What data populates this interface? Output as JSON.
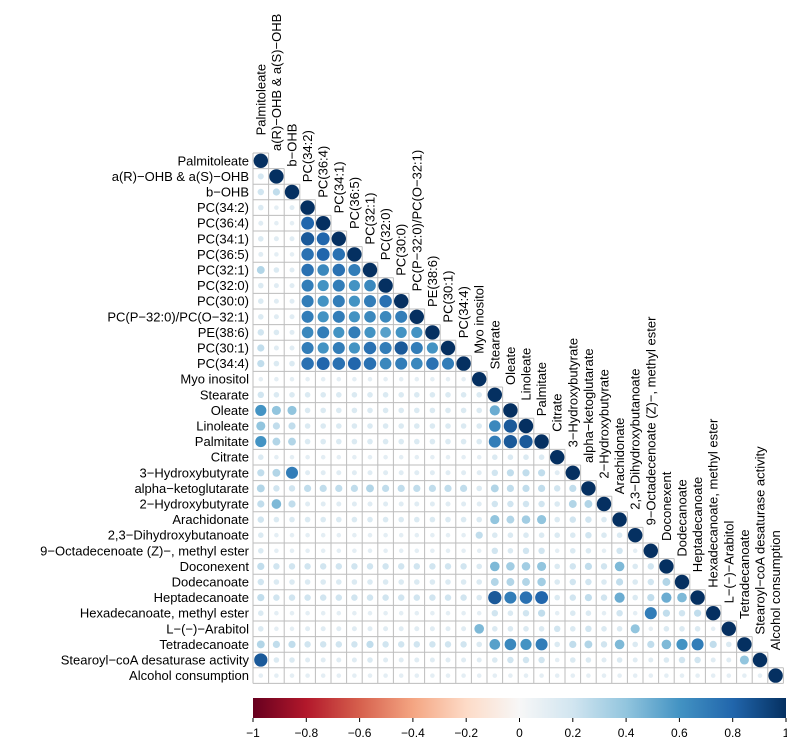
{
  "chart_data": {
    "type": "heatmap",
    "title": "",
    "variables": [
      "Palmitoleate",
      "a(R)−OHB & a(S)−OHB",
      "b−OHB",
      "PC(34:2)",
      "PC(36:4)",
      "PC(34:1)",
      "PC(36:5)",
      "PC(32:1)",
      "PC(32:0)",
      "PC(30:0)",
      "PC(P−32:0)/PC(O−32:1)",
      "PE(38:6)",
      "PC(30:1)",
      "PC(34:4)",
      "Myo inositol",
      "Stearate",
      "Oleate",
      "Linoleate",
      "Palmitate",
      "Citrate",
      "3−Hydroxybutyrate",
      "alpha−ketoglutarate",
      "2−Hydroxybutyrate",
      "Arachidonate",
      "2,3−Dihydroxybutanoate",
      "9−Octadecenoate (Z)−, methyl ester",
      "Doconexent",
      "Dodecanoate",
      "Heptadecanoate",
      "Hexadecanoate, methyl ester",
      "L−(−)−Arabitol",
      "Tetradecanoate",
      "Stearoyl−coA desaturase activity",
      "Alcohol consumption"
    ],
    "lower_triangle": [
      [
        1
      ],
      [
        0.18,
        1
      ],
      [
        0.2,
        0.25,
        1
      ],
      [
        0.15,
        0.1,
        0.12,
        1
      ],
      [
        0.12,
        0.1,
        0.1,
        0.8,
        1
      ],
      [
        0.15,
        0.12,
        0.12,
        0.85,
        0.8,
        1
      ],
      [
        0.12,
        0.1,
        0.1,
        0.75,
        0.8,
        0.75,
        1
      ],
      [
        0.3,
        0.15,
        0.12,
        0.75,
        0.65,
        0.75,
        0.7,
        1
      ],
      [
        0.15,
        0.12,
        0.12,
        0.7,
        0.6,
        0.7,
        0.6,
        0.65,
        1
      ],
      [
        0.15,
        0.12,
        0.12,
        0.7,
        0.6,
        0.7,
        0.6,
        0.7,
        0.75,
        1
      ],
      [
        0.15,
        0.12,
        0.12,
        0.7,
        0.6,
        0.7,
        0.6,
        0.65,
        0.65,
        0.7,
        1
      ],
      [
        0.2,
        0.15,
        0.12,
        0.65,
        0.7,
        0.6,
        0.7,
        0.6,
        0.55,
        0.6,
        0.6,
        1
      ],
      [
        0.25,
        0.12,
        0.12,
        0.7,
        0.6,
        0.7,
        0.6,
        0.75,
        0.7,
        0.85,
        0.7,
        0.6,
        1
      ],
      [
        0.25,
        0.15,
        0.15,
        0.75,
        0.8,
        0.75,
        0.8,
        0.75,
        0.65,
        0.7,
        0.65,
        0.75,
        0.7,
        1
      ],
      [
        0.1,
        0.1,
        0.1,
        0.1,
        0.1,
        0.1,
        0.1,
        0.1,
        0.1,
        0.1,
        0.1,
        0.1,
        0.1,
        0.1,
        1
      ],
      [
        0.2,
        0.15,
        0.15,
        0.15,
        0.15,
        0.15,
        0.15,
        0.15,
        0.15,
        0.15,
        0.15,
        0.15,
        0.15,
        0.15,
        0.15,
        1
      ],
      [
        0.6,
        0.4,
        0.4,
        0.15,
        0.15,
        0.15,
        0.15,
        0.15,
        0.15,
        0.15,
        0.15,
        0.15,
        0.15,
        0.15,
        0.15,
        0.5,
        1
      ],
      [
        0.4,
        0.25,
        0.25,
        0.15,
        0.15,
        0.15,
        0.15,
        0.15,
        0.15,
        0.15,
        0.15,
        0.15,
        0.15,
        0.15,
        0.15,
        0.65,
        0.85,
        1
      ],
      [
        0.6,
        0.3,
        0.3,
        0.15,
        0.15,
        0.15,
        0.15,
        0.15,
        0.15,
        0.15,
        0.15,
        0.15,
        0.15,
        0.15,
        0.15,
        0.7,
        0.85,
        0.85,
        1
      ],
      [
        0.15,
        0.1,
        0.1,
        0.1,
        0.1,
        0.1,
        0.1,
        0.1,
        0.1,
        0.1,
        0.1,
        0.1,
        0.1,
        0.1,
        0.1,
        0.15,
        0.15,
        0.15,
        0.15,
        1
      ],
      [
        0.25,
        0.3,
        0.7,
        0.12,
        0.12,
        0.12,
        0.12,
        0.12,
        0.12,
        0.12,
        0.12,
        0.12,
        0.12,
        0.12,
        0.12,
        0.2,
        0.25,
        0.25,
        0.25,
        0.12,
        1
      ],
      [
        0.3,
        0.2,
        0.2,
        0.25,
        0.25,
        0.25,
        0.25,
        0.3,
        0.25,
        0.25,
        0.25,
        0.25,
        0.25,
        0.25,
        0.15,
        0.3,
        0.25,
        0.25,
        0.25,
        0.2,
        0.25,
        1
      ],
      [
        0.25,
        0.45,
        0.25,
        0.12,
        0.12,
        0.12,
        0.12,
        0.12,
        0.12,
        0.12,
        0.12,
        0.12,
        0.12,
        0.12,
        0.12,
        0.2,
        0.2,
        0.2,
        0.2,
        0.15,
        0.3,
        0.3,
        1
      ],
      [
        0.2,
        0.15,
        0.15,
        0.15,
        0.15,
        0.15,
        0.15,
        0.15,
        0.15,
        0.15,
        0.15,
        0.15,
        0.15,
        0.15,
        0.15,
        0.4,
        0.3,
        0.35,
        0.4,
        0.15,
        0.2,
        0.2,
        0.15,
        1
      ],
      [
        0.15,
        0.1,
        0.1,
        0.1,
        0.1,
        0.1,
        0.1,
        0.1,
        0.1,
        0.1,
        0.1,
        0.1,
        0.1,
        0.1,
        0.25,
        0.15,
        0.15,
        0.15,
        0.15,
        0.15,
        0.15,
        0.2,
        0.15,
        0.15,
        1
      ],
      [
        0.15,
        0.1,
        0.1,
        0.1,
        0.1,
        0.1,
        0.1,
        0.1,
        0.1,
        0.1,
        0.1,
        0.1,
        0.1,
        0.1,
        0.1,
        0.2,
        0.15,
        0.2,
        0.2,
        0.1,
        0.15,
        0.15,
        0.1,
        0.2,
        0.1,
        1
      ],
      [
        0.25,
        0.2,
        0.2,
        0.2,
        0.2,
        0.2,
        0.2,
        0.2,
        0.2,
        0.2,
        0.2,
        0.2,
        0.2,
        0.2,
        0.15,
        0.45,
        0.35,
        0.35,
        0.4,
        0.15,
        0.2,
        0.25,
        0.2,
        0.45,
        0.15,
        0.2,
        1
      ],
      [
        0.2,
        0.15,
        0.15,
        0.15,
        0.15,
        0.15,
        0.15,
        0.15,
        0.15,
        0.15,
        0.15,
        0.15,
        0.15,
        0.15,
        0.15,
        0.3,
        0.3,
        0.3,
        0.35,
        0.15,
        0.2,
        0.2,
        0.15,
        0.25,
        0.15,
        0.2,
        0.3,
        1
      ],
      [
        0.25,
        0.2,
        0.2,
        0.2,
        0.2,
        0.2,
        0.2,
        0.2,
        0.2,
        0.2,
        0.2,
        0.2,
        0.2,
        0.2,
        0.15,
        0.85,
        0.7,
        0.75,
        0.8,
        0.15,
        0.2,
        0.25,
        0.2,
        0.5,
        0.15,
        0.25,
        0.5,
        0.45,
        1
      ],
      [
        0.15,
        0.1,
        0.1,
        0.1,
        0.1,
        0.1,
        0.1,
        0.1,
        0.1,
        0.1,
        0.1,
        0.1,
        0.1,
        0.1,
        0.1,
        0.2,
        0.15,
        0.2,
        0.25,
        0.1,
        0.15,
        0.15,
        0.1,
        0.2,
        0.1,
        0.7,
        0.25,
        0.2,
        0.25,
        1
      ],
      [
        0.15,
        0.1,
        0.1,
        0.12,
        0.12,
        0.12,
        0.12,
        0.12,
        0.12,
        0.12,
        0.12,
        0.12,
        0.12,
        0.12,
        0.45,
        0.15,
        0.15,
        0.15,
        0.15,
        0.2,
        0.15,
        0.2,
        0.15,
        0.15,
        0.4,
        0.1,
        0.15,
        0.15,
        0.15,
        0.1,
        1
      ],
      [
        0.3,
        0.25,
        0.25,
        0.2,
        0.2,
        0.2,
        0.2,
        0.25,
        0.2,
        0.2,
        0.2,
        0.2,
        0.2,
        0.2,
        0.15,
        0.55,
        0.65,
        0.6,
        0.7,
        0.15,
        0.25,
        0.3,
        0.2,
        0.45,
        0.15,
        0.25,
        0.45,
        0.6,
        0.7,
        0.25,
        0.15,
        1
      ],
      [
        0.85,
        0.15,
        0.15,
        0.12,
        0.12,
        0.12,
        0.12,
        0.15,
        0.12,
        0.12,
        0.12,
        0.12,
        0.12,
        0.12,
        0.12,
        0.15,
        0.2,
        0.2,
        0.2,
        0.1,
        0.15,
        0.15,
        0.12,
        0.15,
        0.12,
        0.12,
        0.15,
        0.2,
        0.2,
        0.12,
        0.12,
        0.4,
        1
      ],
      [
        0.1,
        0.1,
        0.1,
        0.1,
        0.1,
        0.1,
        0.1,
        0.1,
        0.1,
        0.1,
        0.1,
        0.1,
        0.1,
        0.1,
        0.1,
        0.1,
        0.1,
        0.1,
        0.1,
        0.1,
        0.1,
        0.1,
        0.1,
        0.1,
        0.1,
        0.1,
        0.1,
        0.1,
        0.1,
        0.1,
        0.1,
        0.1,
        0.1,
        1
      ]
    ],
    "colorbar": {
      "range": [
        -1,
        1
      ],
      "ticks": [
        -1,
        -0.8,
        -0.6,
        -0.4,
        -0.2,
        0,
        0.2,
        0.4,
        0.6,
        0.8,
        1
      ],
      "tick_labels": [
        "−1",
        "−0.8",
        "−0.6",
        "−0.4",
        "−0.2",
        "0",
        "0.2",
        "0.4",
        "0.6",
        "0.8",
        "1"
      ]
    },
    "palette": {
      "negative_strong": "#67001f",
      "negative_mid": "#d6604d",
      "negative_light": "#fddbc7",
      "neutral": "#f7f7f7",
      "positive_light": "#d1e5f0",
      "positive_mid": "#4393c3",
      "positive_strong": "#053061"
    }
  }
}
